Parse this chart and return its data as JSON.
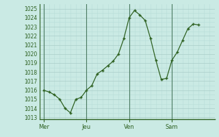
{
  "x_labels": [
    "Mer",
    "Jeu",
    "Ven",
    "Sam"
  ],
  "day_positions": [
    0,
    8,
    16,
    24
  ],
  "y_values": [
    1016.0,
    1015.8,
    1015.5,
    1015.0,
    1014.0,
    1013.5,
    1015.0,
    1015.2,
    1016.0,
    1016.5,
    1017.8,
    1018.2,
    1018.7,
    1019.2,
    1020.0,
    1021.7,
    1024.0,
    1024.8,
    1024.3,
    1023.7,
    1021.7,
    1019.3,
    1017.2,
    1017.3,
    1019.3,
    1020.2,
    1021.5,
    1022.8,
    1023.3,
    1023.2
  ],
  "ylim": [
    1012.8,
    1025.5
  ],
  "yticks": [
    1013,
    1014,
    1015,
    1016,
    1017,
    1018,
    1019,
    1020,
    1021,
    1022,
    1023,
    1024,
    1025
  ],
  "line_color": "#2d6020",
  "bg_color": "#caeae4",
  "grid_major_color": "#aaccc8",
  "grid_minor_color": "#b8ddd8",
  "tick_color": "#2d6020",
  "spine_color": "#2d6020"
}
